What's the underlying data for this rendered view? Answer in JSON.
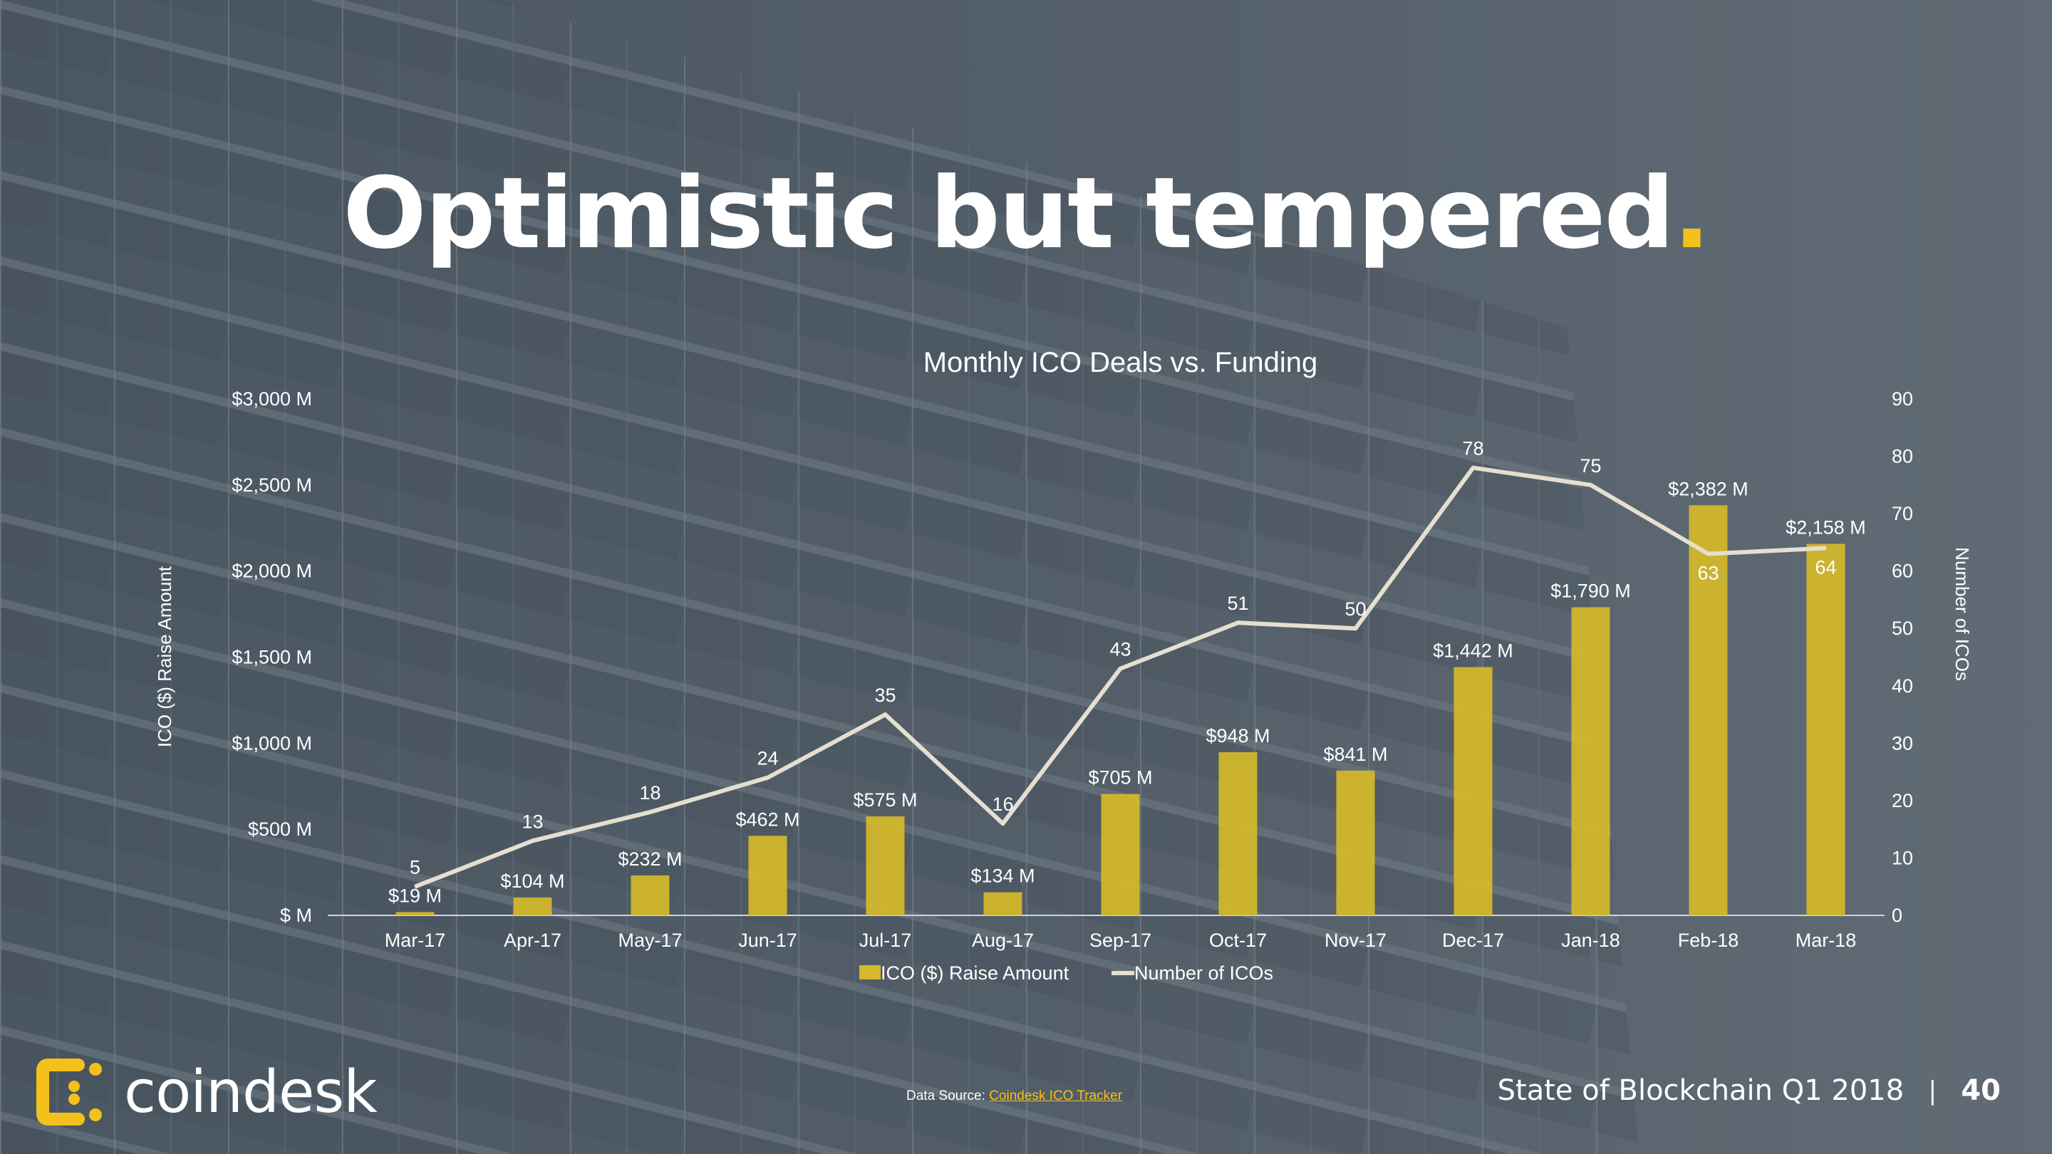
{
  "slide": {
    "title": "Optimistic but tempered",
    "title_dot": ".",
    "logo_text": "coindesk",
    "source_label": "Data Source:",
    "source_link": "Coindesk ICO Tracker",
    "report_title": "State of Blockchain Q1 2018",
    "separator": "|",
    "page_number": "40"
  },
  "colors": {
    "accent": "#f3c01c",
    "bar": "#d4b92a",
    "line": "#e4dfcf",
    "text": "#ffffff"
  },
  "chart_data": {
    "type": "bar",
    "title": "Monthly ICO Deals vs. Funding",
    "ylabel": "ICO ($) Raise Amount",
    "y2label": "Number of ICOs",
    "ylim": [
      0,
      3000
    ],
    "y2lim": [
      0,
      90
    ],
    "y_ticks": [
      "$ M",
      "$500 M",
      "$1,000 M",
      "$1,500 M",
      "$2,000 M",
      "$2,500 M",
      "$3,000 M"
    ],
    "y_tick_values": [
      0,
      500,
      1000,
      1500,
      2000,
      2500,
      3000
    ],
    "y2_ticks": [
      "0",
      "10",
      "20",
      "30",
      "40",
      "50",
      "60",
      "70",
      "80",
      "90"
    ],
    "y2_tick_values": [
      0,
      10,
      20,
      30,
      40,
      50,
      60,
      70,
      80,
      90
    ],
    "categories": [
      "Mar-17",
      "Apr-17",
      "May-17",
      "Jun-17",
      "Jul-17",
      "Aug-17",
      "Sep-17",
      "Oct-17",
      "Nov-17",
      "Dec-17",
      "Jan-18",
      "Feb-18",
      "Mar-18"
    ],
    "legend_placement": "bottom",
    "grid": false,
    "series": [
      {
        "name": "ICO ($) Raise Amount",
        "type": "bar",
        "axis": "left",
        "values": [
          19,
          104,
          232,
          462,
          575,
          134,
          705,
          948,
          841,
          1442,
          1790,
          2382,
          2158
        ],
        "labels": [
          "$19 M",
          "$104 M",
          "$232 M",
          "$462 M",
          "$575 M",
          "$134 M",
          "$705 M",
          "$948 M",
          "$841 M",
          "$1,442 M",
          "$1,790 M",
          "$2,382 M",
          "$2,158 M"
        ]
      },
      {
        "name": "Number of ICOs",
        "type": "line",
        "axis": "right",
        "values": [
          5,
          13,
          18,
          24,
          35,
          16,
          43,
          51,
          50,
          78,
          75,
          63,
          64
        ],
        "labels": [
          "5",
          "13",
          "18",
          "24",
          "35",
          "16",
          "43",
          "51",
          "50",
          "78",
          "75",
          "63",
          "64"
        ]
      }
    ]
  }
}
